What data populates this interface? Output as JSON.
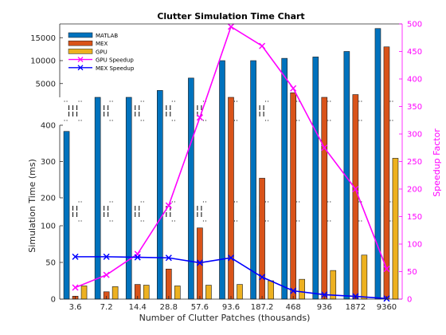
{
  "chart_data": {
    "type": "bar",
    "title": "Clutter Simulation Time Chart",
    "xlabel": "Number of Clutter Patches (thousands)",
    "ylabel": "Simulation Time (ms)",
    "y2label": "Speedup Factor",
    "categories": [
      "3.6",
      "7.2",
      "14.4",
      "28.8",
      "57.6",
      "93.6",
      "187.2",
      "468",
      "936",
      "1872",
      "9360"
    ],
    "series": [
      {
        "name": "MATLAB",
        "axis": "left",
        "kind": "bar",
        "color": "#0072BD",
        "values": [
          383,
          1000,
          1700,
          3500,
          6200,
          10000,
          10000,
          10500,
          10800,
          12000,
          17000
        ]
      },
      {
        "name": "MEX",
        "axis": "left",
        "kind": "bar",
        "color": "#D95319",
        "values": [
          4,
          10,
          20,
          41,
          97,
          2000,
          254,
          3000,
          1000,
          2600,
          13000
        ]
      },
      {
        "name": "GPU",
        "axis": "left",
        "kind": "bar",
        "color": "#EDB120",
        "values": [
          18,
          17,
          19,
          18,
          19,
          20,
          25,
          27,
          39,
          60,
          309
        ]
      },
      {
        "name": "GPU Speedup",
        "axis": "right",
        "kind": "line",
        "color": "#FF00FF",
        "marker": "x",
        "values": [
          21,
          44,
          82,
          170,
          330,
          495,
          460,
          383,
          275,
          200,
          55
        ]
      },
      {
        "name": "MEX Speedup",
        "axis": "right",
        "kind": "line",
        "color": "#0000FF",
        "marker": "x",
        "values": [
          77,
          77,
          76,
          75,
          66,
          75,
          40,
          15,
          8,
          5,
          1
        ]
      }
    ],
    "left_axis_segments": [
      {
        "range": [
          0,
          100
        ],
        "ticks": [
          0,
          50,
          100
        ],
        "tick_labels": [
          "0",
          "50",
          "100"
        ]
      },
      {
        "range": [
          200,
          400
        ],
        "ticks": [
          200,
          300,
          400
        ],
        "tick_labels": [
          "200",
          "300",
          "400"
        ]
      },
      {
        "range": [
          2000,
          18000
        ],
        "ticks": [
          5000,
          10000,
          15000
        ],
        "tick_labels": [
          "5000",
          "10000",
          "15000"
        ]
      }
    ],
    "y2lim": [
      0,
      500
    ],
    "y2ticks": [
      0,
      50,
      100,
      150,
      200,
      250,
      300,
      350,
      400,
      450,
      500
    ],
    "y2tick_labels": [
      "0",
      "50",
      "100",
      "150",
      "200",
      "250",
      "300",
      "350",
      "400",
      "450",
      "500"
    ],
    "legend_position": "top-left",
    "grid": false,
    "colors": {
      "left_axis": "#262626",
      "right_axis": "#FF00FF",
      "break_marks": "#000000"
    }
  }
}
